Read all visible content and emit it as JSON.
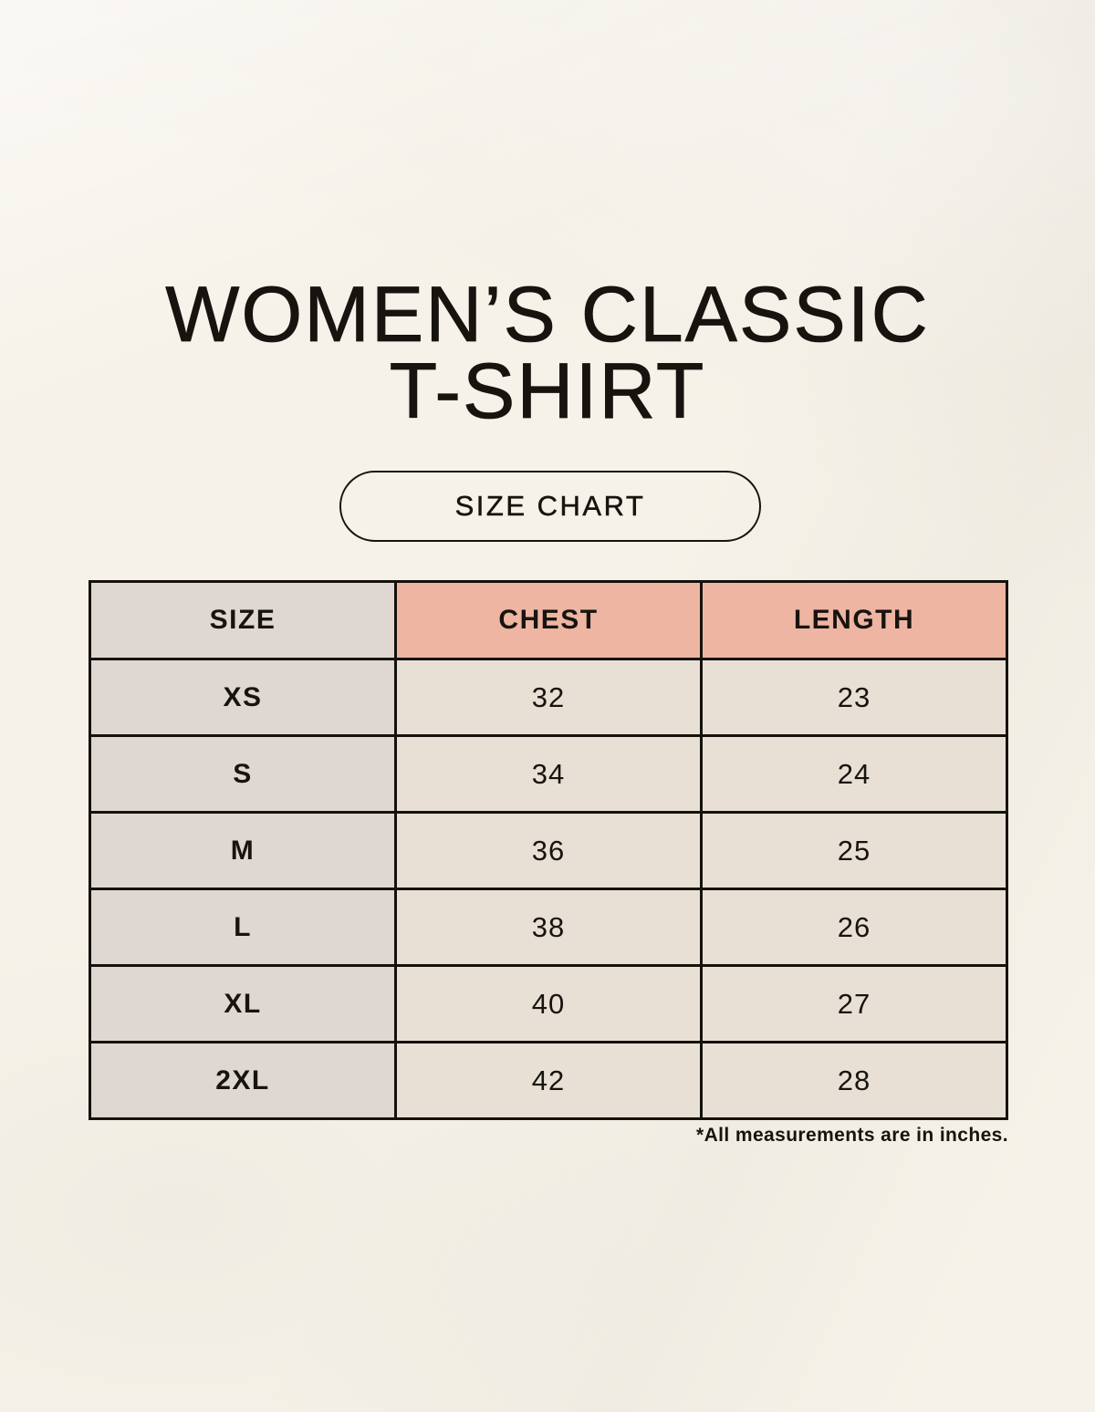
{
  "page": {
    "title_line1": "WOMEN’S CLASSIC",
    "title_line2": "T-SHIRT",
    "badge_label": "SIZE CHART",
    "footnote": "*All measurements are in inches."
  },
  "colors": {
    "background": "#f6f2e9",
    "text": "#17140f",
    "table_border": "#15120d",
    "header_accent": "#eeb5a3",
    "size_column": "#ded7d2",
    "data_cell": "#e8e0d4"
  },
  "chart_data": {
    "type": "table",
    "title": "WOMEN’S CLASSIC T-SHIRT — SIZE CHART",
    "units": "inches",
    "columns": [
      "SIZE",
      "CHEST",
      "LENGTH"
    ],
    "rows": [
      [
        "XS",
        "32",
        "23"
      ],
      [
        "S",
        "34",
        "24"
      ],
      [
        "M",
        "36",
        "25"
      ],
      [
        "L",
        "38",
        "26"
      ],
      [
        "XL",
        "40",
        "27"
      ],
      [
        "2XL",
        "42",
        "28"
      ]
    ]
  }
}
